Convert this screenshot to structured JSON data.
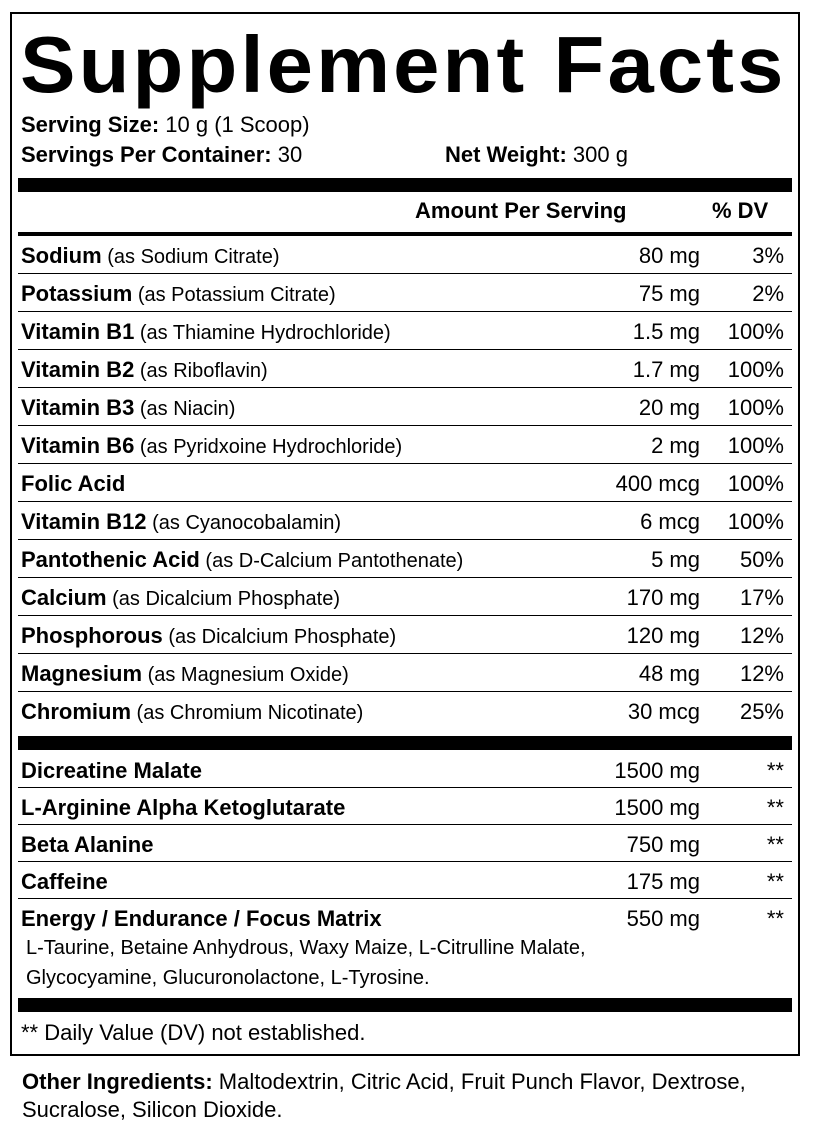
{
  "title": "Supplement Facts",
  "serving": {
    "size_label": "Serving Size:",
    "size_value": " 10 g (1 Scoop)",
    "per_container_label": "Servings Per Container:",
    "per_container_value": " 30",
    "net_weight_label": "Net Weight:",
    "net_weight_value": " 300 g"
  },
  "header": {
    "amount": "Amount Per Serving",
    "dv": "% DV"
  },
  "nutrients": [
    {
      "name": "Sodium",
      "source": " (as Sodium Citrate)",
      "amount": "80 mg",
      "dv": "3%"
    },
    {
      "name": "Potassium",
      "source": " (as Potassium Citrate)",
      "amount": "75 mg",
      "dv": "2%"
    },
    {
      "name": "Vitamin B1",
      "source": " (as Thiamine Hydrochloride)",
      "amount": "1.5 mg",
      "dv": "100%"
    },
    {
      "name": "Vitamin B2",
      "source": " (as Riboflavin)",
      "amount": "1.7 mg",
      "dv": "100%"
    },
    {
      "name": "Vitamin B3",
      "source": " (as Niacin)",
      "amount": "20 mg",
      "dv": "100%"
    },
    {
      "name": "Vitamin B6",
      "source": " (as Pyridxoine Hydrochloride)",
      "amount": "2 mg",
      "dv": "100%"
    },
    {
      "name": "Folic Acid",
      "source": "",
      "amount": "400 mcg",
      "dv": "100%"
    },
    {
      "name": "Vitamin B12",
      "source": " (as Cyanocobalamin)",
      "amount": "6 mcg",
      "dv": "100%"
    },
    {
      "name": "Pantothenic Acid",
      "source": " (as D-Calcium Pantothenate)",
      "amount": "5 mg",
      "dv": "50%"
    },
    {
      "name": "Calcium",
      "source": " (as Dicalcium Phosphate)",
      "amount": "170 mg",
      "dv": "17%"
    },
    {
      "name": "Phosphorous",
      "source": " (as Dicalcium Phosphate)",
      "amount": "120 mg",
      "dv": "12%"
    },
    {
      "name": "Magnesium",
      "source": " (as Magnesium Oxide)",
      "amount": "48 mg",
      "dv": "12%"
    },
    {
      "name": "Chromium",
      "source": " (as Chromium Nicotinate)",
      "amount": "30 mcg",
      "dv": "25%"
    }
  ],
  "ingredients": [
    {
      "name": "Dicreatine Malate",
      "amount": "1500 mg",
      "dv": "**"
    },
    {
      "name": "L-Arginine Alpha Ketoglutarate",
      "amount": "1500 mg",
      "dv": "**"
    },
    {
      "name": "Beta Alanine",
      "amount": "750 mg",
      "dv": "**"
    },
    {
      "name": "Caffeine",
      "amount": "175 mg",
      "dv": "**"
    },
    {
      "name": "Energy / Endurance / Focus Matrix",
      "amount": "550 mg",
      "dv": "**"
    }
  ],
  "matrix_lines": [
    "L-Taurine, Betaine Anhydrous, Waxy Maize, L-Citrulline Malate,",
    "Glycocyamine, Glucuronolactone, L-Tyrosine."
  ],
  "footnote": "** Daily Value (DV) not established.",
  "other": {
    "label": "Other Ingredients:",
    "text": " Maltodextrin, Citric Acid, Fruit Punch Flavor, Dextrose, Sucralose, Silicon Dioxide."
  }
}
